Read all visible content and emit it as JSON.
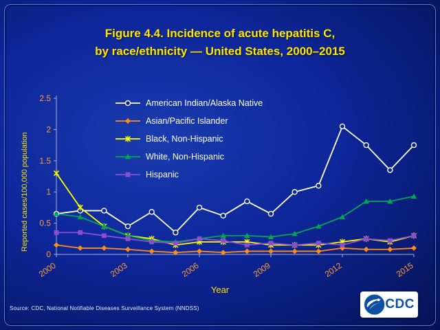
{
  "slide": {
    "title_line1": "Figure 4.4. Incidence of acute hepatitis C,",
    "title_line2": "by race/ethnicity — United States, 2000–2015",
    "source": "Source: CDC, National Notifiable Diseases Surveillance System (NNDSS)",
    "logo_text": "CDC"
  },
  "chart_data": {
    "type": "line",
    "title": "Figure 4.4. Incidence of acute hepatitis C, by race/ethnicity — United States, 2000–2015",
    "xlabel": "Year",
    "ylabel": "Reported cases/100,000 population",
    "x": [
      2000,
      2001,
      2002,
      2003,
      2004,
      2005,
      2006,
      2007,
      2008,
      2009,
      2010,
      2011,
      2012,
      2013,
      2014,
      2015
    ],
    "xticks": [
      2000,
      2003,
      2006,
      2009,
      2012,
      2015
    ],
    "ylim": [
      0,
      2.5
    ],
    "yticks": [
      0,
      0.5,
      1,
      1.5,
      2,
      2.5
    ],
    "ytick_labels": [
      "0",
      "0.5",
      "1",
      "1.5",
      "2",
      "2.5"
    ],
    "grid": false,
    "legend_position": "top-left",
    "tick_color": "#ff9d33",
    "axis_color": "#a8b4d6",
    "series": [
      {
        "name": "American Indian/Alaska Native",
        "color": "#ffffff",
        "marker": "circle",
        "values": [
          0.65,
          0.7,
          0.7,
          0.45,
          0.68,
          0.35,
          0.75,
          0.62,
          0.85,
          0.65,
          1.0,
          1.1,
          2.05,
          1.75,
          1.35,
          1.75
        ]
      },
      {
        "name": "Asian/Pacific Islander",
        "color": "#ff8c1a",
        "marker": "diamond",
        "values": [
          0.15,
          0.1,
          0.1,
          0.08,
          0.05,
          0.03,
          0.05,
          0.03,
          0.05,
          0.05,
          0.05,
          0.05,
          0.1,
          0.08,
          0.08,
          0.1
        ]
      },
      {
        "name": "Black, Non-Hispanic",
        "color": "#ffff00",
        "marker": "x",
        "values": [
          1.3,
          0.75,
          0.45,
          0.3,
          0.25,
          0.15,
          0.2,
          0.2,
          0.2,
          0.15,
          0.15,
          0.15,
          0.2,
          0.25,
          0.2,
          0.3
        ]
      },
      {
        "name": "White, Non-Hispanic",
        "color": "#00a651",
        "marker": "triangle",
        "values": [
          0.65,
          0.6,
          0.45,
          0.3,
          0.22,
          0.2,
          0.25,
          0.3,
          0.3,
          0.28,
          0.33,
          0.45,
          0.6,
          0.85,
          0.85,
          0.93
        ]
      },
      {
        "name": "Hispanic",
        "color": "#8a4fd0",
        "marker": "square",
        "values": [
          0.35,
          0.35,
          0.3,
          0.25,
          0.2,
          0.18,
          0.25,
          0.22,
          0.15,
          0.18,
          0.15,
          0.18,
          0.15,
          0.25,
          0.22,
          0.3
        ]
      }
    ]
  }
}
